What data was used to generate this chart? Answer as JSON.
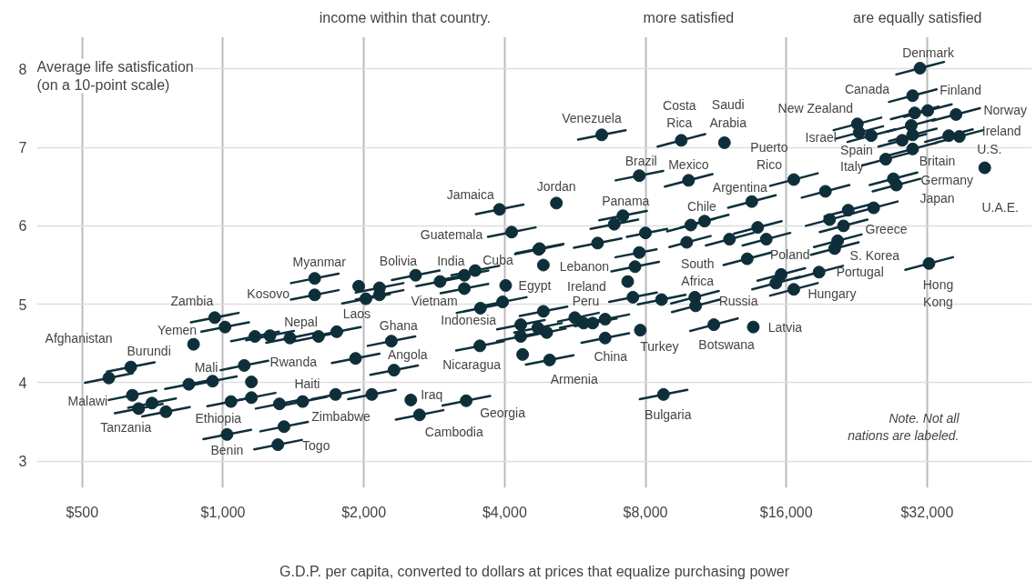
{
  "chart_data": {
    "type": "scatter",
    "xlabel": "G.D.P. per capita, converted to dollars at prices that equalize purchasing power",
    "ylabel": "Average life satisfication\n(on a 10-point scale)",
    "log": "x",
    "grid": true,
    "xlim": [
      400,
      53600
    ],
    "ylim": [
      2.66,
      8.41
    ],
    "xticks": [
      {
        "value": 500,
        "label": "$500"
      },
      {
        "value": 1000,
        "label": "$1,000"
      },
      {
        "value": 2000,
        "label": "$2,000"
      },
      {
        "value": 4000,
        "label": "$4,000"
      },
      {
        "value": 8000,
        "label": "$8,000"
      },
      {
        "value": 16000,
        "label": "$16,000"
      },
      {
        "value": 32000,
        "label": "$32,000"
      }
    ],
    "yticks": [
      3,
      4,
      5,
      6,
      7,
      8
    ],
    "series": [
      {
        "color": "#0e2f3a",
        "marker": "circle",
        "x": [
          570,
          635,
          640,
          705,
          660,
          755,
          865,
          960,
          1010,
          845,
          950,
          1150,
          1110,
          1040,
          1150,
          1020,
          1320,
          1480,
          1740,
          1350,
          1310,
          1570,
          1570,
          1170,
          1260,
          1390,
          1600,
          1750,
          1920,
          1950,
          2020,
          2160,
          2160,
          2580,
          2910,
          3280,
          3460,
          3280,
          4020,
          3960,
          3550,
          2290,
          2320,
          3540,
          2520,
          2630,
          3310,
          2080,
          4330,
          4330,
          4370,
          4710,
          4920,
          4840,
          4990,
          4840,
          4730,
          5650,
          5900,
          6170,
          6560,
          6560,
          7330,
          7600,
          7760,
          7520,
          7800,
          8660,
          10200,
          10240,
          8740,
          6450,
          9540,
          7760,
          9890,
          3900,
          5160,
          4140,
          4750,
          7160,
          6860,
          6320,
          8000,
          10000,
          10700,
          9800,
          30900,
          29800,
          30100,
          32100,
          29600,
          29800,
          36900,
          35600,
          37500,
          22700,
          22900,
          24300,
          29800,
          28300,
          26100,
          11800,
          16600,
          19400,
          27100,
          27500,
          42500,
          13500,
          12100,
          13900,
          14500,
          19800,
          21700,
          24600,
          21200,
          20600,
          20300,
          13200,
          32300,
          15600,
          15200,
          18800,
          16600,
          11200,
          13600
        ],
        "values": [
          4.06,
          4.2,
          3.84,
          3.74,
          3.67,
          3.63,
          4.49,
          4.83,
          4.71,
          3.98,
          4.02,
          4.01,
          4.22,
          3.76,
          3.81,
          3.34,
          3.73,
          3.76,
          3.85,
          3.44,
          3.21,
          5.33,
          5.12,
          4.59,
          4.6,
          4.57,
          4.59,
          4.65,
          4.31,
          5.23,
          5.07,
          5.21,
          5.12,
          5.37,
          5.29,
          5.37,
          5.43,
          5.2,
          5.24,
          5.03,
          4.95,
          4.53,
          4.16,
          4.47,
          3.78,
          3.59,
          3.77,
          3.85,
          4.74,
          4.59,
          4.36,
          4.7,
          4.64,
          4.91,
          4.29,
          5.5,
          5.7,
          4.83,
          4.76,
          4.76,
          4.81,
          4.57,
          5.29,
          5.48,
          5.66,
          5.09,
          4.67,
          5.06,
          5.09,
          4.98,
          3.85,
          7.16,
          7.09,
          6.64,
          6.58,
          6.21,
          6.29,
          5.92,
          5.71,
          6.13,
          6.02,
          5.78,
          5.91,
          6.01,
          6.06,
          5.79,
          8.01,
          7.66,
          7.44,
          7.47,
          7.28,
          7.16,
          7.42,
          7.15,
          7.14,
          7.3,
          7.19,
          7.15,
          6.98,
          7.09,
          6.85,
          7.06,
          6.59,
          6.44,
          6.6,
          6.52,
          6.74,
          6.31,
          5.83,
          5.98,
          5.83,
          6.08,
          6.2,
          6.23,
          6.0,
          5.81,
          5.71,
          5.58,
          5.52,
          5.38,
          5.27,
          5.41,
          5.19,
          4.74,
          4.71
        ]
      },
      {
        "type": "line",
        "color": "#0e2f3a",
        "x": [
          507,
          641
        ],
        "values": [
          4.0,
          4.12
        ]
      },
      {
        "type": "line",
        "color": "#0e2f3a",
        "x": [
          565,
          714
        ],
        "values": [
          4.14,
          4.26
        ]
      },
      {
        "type": "line",
        "color": "#0e2f3a",
        "x": [
          570,
          720
        ],
        "values": [
          3.78,
          3.9
        ]
      },
      {
        "type": "line",
        "color": "#0e2f3a",
        "x": [
          627,
          793
        ],
        "values": [
          3.68,
          3.8
        ]
      },
      {
        "type": "line",
        "color": "#0e2f3a",
        "x": [
          587,
          743
        ],
        "values": [
          3.61,
          3.73
        ]
      },
      {
        "type": "line",
        "color": "#0e2f3a",
        "x": [
          672,
          849
        ],
        "values": [
          3.57,
          3.69
        ]
      },
      {
        "type": "line",
        "color": "#0e2f3a",
        "x": [
          854,
          1080
        ],
        "values": [
          4.77,
          4.89
        ]
      },
      {
        "type": "line",
        "color": "#0e2f3a",
        "x": [
          899,
          1136
        ],
        "values": [
          4.65,
          4.77
        ]
      },
      {
        "type": "line",
        "color": "#0e2f3a",
        "x": [
          752,
          951
        ],
        "values": [
          3.92,
          4.04
        ]
      },
      {
        "type": "line",
        "color": "#0e2f3a",
        "x": [
          846,
          1069
        ],
        "values": [
          3.96,
          4.08
        ]
      },
      {
        "type": "line",
        "color": "#0e2f3a",
        "x": [
          988,
          1249
        ],
        "values": [
          4.16,
          4.28
        ]
      },
      {
        "type": "line",
        "color": "#0e2f3a",
        "x": [
          926,
          1170
        ],
        "values": [
          3.7,
          3.82
        ]
      },
      {
        "type": "line",
        "color": "#0e2f3a",
        "x": [
          1024,
          1294
        ],
        "values": [
          3.75,
          3.87
        ]
      },
      {
        "type": "line",
        "color": "#0e2f3a",
        "x": [
          908,
          1148
        ],
        "values": [
          3.28,
          3.4
        ]
      },
      {
        "type": "line",
        "color": "#0e2f3a",
        "x": [
          1175,
          1485
        ],
        "values": [
          3.67,
          3.79
        ]
      },
      {
        "type": "line",
        "color": "#0e2f3a",
        "x": [
          1317,
          1665
        ],
        "values": [
          3.7,
          3.82
        ]
      },
      {
        "type": "line",
        "color": "#0e2f3a",
        "x": [
          1549,
          1958
        ],
        "values": [
          3.79,
          3.91
        ]
      },
      {
        "type": "line",
        "color": "#0e2f3a",
        "x": [
          1202,
          1519
        ],
        "values": [
          3.38,
          3.5
        ]
      },
      {
        "type": "line",
        "color": "#0e2f3a",
        "x": [
          1166,
          1474
        ],
        "values": [
          3.15,
          3.27
        ]
      },
      {
        "type": "line",
        "color": "#0e2f3a",
        "x": [
          1397,
          1766
        ],
        "values": [
          5.27,
          5.39
        ]
      },
      {
        "type": "line",
        "color": "#0e2f3a",
        "x": [
          1397,
          1766
        ],
        "values": [
          5.06,
          5.18
        ]
      },
      {
        "type": "line",
        "color": "#0e2f3a",
        "x": [
          1041,
          1316
        ],
        "values": [
          4.53,
          4.65
        ]
      },
      {
        "type": "line",
        "color": "#0e2f3a",
        "x": [
          1121,
          1418
        ],
        "values": [
          4.54,
          4.66
        ]
      },
      {
        "type": "line",
        "color": "#0e2f3a",
        "x": [
          1237,
          1564
        ],
        "values": [
          4.51,
          4.63
        ]
      },
      {
        "type": "line",
        "color": "#0e2f3a",
        "x": [
          1424,
          1800
        ],
        "values": [
          4.53,
          4.65
        ]
      },
      {
        "type": "line",
        "color": "#0e2f3a",
        "x": [
          1558,
          1969
        ],
        "values": [
          4.59,
          4.71
        ]
      },
      {
        "type": "line",
        "color": "#0e2f3a",
        "x": [
          1709,
          2160
        ],
        "values": [
          4.25,
          4.37
        ]
      },
      {
        "type": "line",
        "color": "#0e2f3a",
        "x": [
          1798,
          2273
        ],
        "values": [
          5.01,
          5.13
        ]
      },
      {
        "type": "line",
        "color": "#0e2f3a",
        "x": [
          1922,
          2430
        ],
        "values": [
          5.15,
          5.27
        ]
      },
      {
        "type": "line",
        "color": "#0e2f3a",
        "x": [
          1922,
          2430
        ],
        "values": [
          5.06,
          5.18
        ]
      },
      {
        "type": "line",
        "color": "#0e2f3a",
        "x": [
          2296,
          2903
        ],
        "values": [
          5.31,
          5.43
        ]
      },
      {
        "type": "line",
        "color": "#0e2f3a",
        "x": [
          2590,
          3274
        ],
        "values": [
          5.23,
          5.35
        ]
      },
      {
        "type": "line",
        "color": "#0e2f3a",
        "x": [
          2919,
          3690
        ],
        "values": [
          5.31,
          5.43
        ]
      },
      {
        "type": "line",
        "color": "#0e2f3a",
        "x": [
          3079,
          3893
        ],
        "values": [
          5.37,
          5.49
        ]
      },
      {
        "type": "line",
        "color": "#0e2f3a",
        "x": [
          2919,
          3690
        ],
        "values": [
          5.14,
          5.26
        ]
      },
      {
        "type": "line",
        "color": "#0e2f3a",
        "x": [
          3524,
          4455
        ],
        "values": [
          4.97,
          5.09
        ]
      },
      {
        "type": "line",
        "color": "#0e2f3a",
        "x": [
          3160,
          3994
        ],
        "values": [
          4.89,
          5.01
        ]
      },
      {
        "type": "line",
        "color": "#0e2f3a",
        "x": [
          2038,
          2576
        ],
        "values": [
          4.47,
          4.59
        ]
      },
      {
        "type": "line",
        "color": "#0e2f3a",
        "x": [
          2065,
          2610
        ],
        "values": [
          4.1,
          4.22
        ]
      },
      {
        "type": "line",
        "color": "#0e2f3a",
        "x": [
          3151,
          3983
        ],
        "values": [
          4.41,
          4.53
        ]
      },
      {
        "type": "line",
        "color": "#0e2f3a",
        "x": [
          2341,
          2959
        ],
        "values": [
          3.53,
          3.65
        ]
      },
      {
        "type": "line",
        "color": "#0e2f3a",
        "x": [
          2946,
          3724
        ],
        "values": [
          3.71,
          3.83
        ]
      },
      {
        "type": "line",
        "color": "#0e2f3a",
        "x": [
          1851,
          2340
        ],
        "values": [
          3.79,
          3.91
        ]
      },
      {
        "type": "line",
        "color": "#0e2f3a",
        "x": [
          3854,
          4871
        ],
        "values": [
          4.68,
          4.8
        ]
      },
      {
        "type": "line",
        "color": "#0e2f3a",
        "x": [
          3854,
          4871
        ],
        "values": [
          4.53,
          4.65
        ]
      },
      {
        "type": "line",
        "color": "#0e2f3a",
        "x": [
          4192,
          5299
        ],
        "values": [
          4.64,
          4.76
        ]
      },
      {
        "type": "line",
        "color": "#0e2f3a",
        "x": [
          4450,
          5400
        ],
        "values": [
          4.59,
          4.69
        ]
      },
      {
        "type": "line",
        "color": "#0e2f3a",
        "x": [
          4308,
          5445
        ],
        "values": [
          4.85,
          4.97
        ]
      },
      {
        "type": "line",
        "color": "#0e2f3a",
        "x": [
          4441,
          5614
        ],
        "values": [
          4.23,
          4.35
        ]
      },
      {
        "type": "line",
        "color": "#0e2f3a",
        "x": [
          4210,
          5321
        ],
        "values": [
          5.64,
          5.76
        ]
      },
      {
        "type": "line",
        "color": "#0e2f3a",
        "x": [
          5200,
          6356
        ],
        "values": [
          4.78,
          4.89
        ]
      },
      {
        "type": "line",
        "color": "#0e2f3a",
        "x": [
          5251,
          6638
        ],
        "values": [
          4.7,
          4.82
        ]
      },
      {
        "type": "line",
        "color": "#0e2f3a",
        "x": [
          5650,
          6941
        ],
        "values": [
          4.72,
          4.82
        ]
      },
      {
        "type": "line",
        "color": "#0e2f3a",
        "x": [
          5838,
          7380
        ],
        "values": [
          4.75,
          4.87
        ]
      },
      {
        "type": "line",
        "color": "#0e2f3a",
        "x": [
          5838,
          7380
        ],
        "values": [
          4.51,
          4.63
        ]
      },
      {
        "type": "line",
        "color": "#0e2f3a",
        "x": [
          6764,
          8550
        ],
        "values": [
          5.42,
          5.54
        ]
      },
      {
        "type": "line",
        "color": "#0e2f3a",
        "x": [
          6906,
          8450
        ],
        "values": [
          5.6,
          5.7
        ]
      },
      {
        "type": "line",
        "color": "#0e2f3a",
        "x": [
          6693,
          8460
        ],
        "values": [
          5.03,
          5.15
        ]
      },
      {
        "type": "line",
        "color": "#0e2f3a",
        "x": [
          7707,
          9743
        ],
        "values": [
          5.0,
          5.12
        ]
      },
      {
        "type": "line",
        "color": "#0e2f3a",
        "x": [
          9078,
          11475
        ],
        "values": [
          5.01,
          5.17
        ]
      },
      {
        "type": "line",
        "color": "#0e2f3a",
        "x": [
          9114,
          11520
        ],
        "values": [
          4.9,
          5.06
        ]
      },
      {
        "type": "line",
        "color": "#0e2f3a",
        "x": [
          7779,
          9833
        ],
        "values": [
          3.79,
          3.91
        ]
      },
      {
        "type": "line",
        "color": "#0e2f3a",
        "x": [
          5741,
          7256
        ],
        "values": [
          7.1,
          7.22
        ]
      },
      {
        "type": "line",
        "color": "#0e2f3a",
        "x": [
          8491,
          10733
        ],
        "values": [
          7.01,
          7.17
        ]
      },
      {
        "type": "line",
        "color": "#0e2f3a",
        "x": [
          6906,
          8730
        ],
        "values": [
          6.58,
          6.7
        ]
      },
      {
        "type": "line",
        "color": "#0e2f3a",
        "x": [
          8802,
          11126
        ],
        "values": [
          6.5,
          6.66
        ]
      },
      {
        "type": "line",
        "color": "#0e2f3a",
        "x": [
          3471,
          4388
        ],
        "values": [
          6.15,
          6.27
        ]
      },
      {
        "type": "line",
        "color": "#0e2f3a",
        "x": [
          3685,
          4658
        ],
        "values": [
          5.86,
          5.98
        ]
      },
      {
        "type": "line",
        "color": "#0e2f3a",
        "x": [
          4228,
          5344
        ],
        "values": [
          5.65,
          5.77
        ]
      },
      {
        "type": "line",
        "color": "#0e2f3a",
        "x": [
          6372,
          8055
        ],
        "values": [
          6.07,
          6.19
        ]
      },
      {
        "type": "line",
        "color": "#0e2f3a",
        "x": [
          6105,
          7718
        ],
        "values": [
          5.96,
          6.08
        ]
      },
      {
        "type": "line",
        "color": "#0e2f3a",
        "x": [
          5625,
          7110
        ],
        "values": [
          5.72,
          5.84
        ]
      },
      {
        "type": "line",
        "color": "#0e2f3a",
        "x": [
          7300,
          8900
        ],
        "values": [
          5.86,
          5.96
        ]
      },
      {
        "type": "line",
        "color": "#0e2f3a",
        "x": [
          8900,
          11250
        ],
        "values": [
          5.93,
          6.09
        ]
      },
      {
        "type": "line",
        "color": "#0e2f3a",
        "x": [
          9523,
          12038
        ],
        "values": [
          5.98,
          6.14
        ]
      },
      {
        "type": "line",
        "color": "#0e2f3a",
        "x": [
          9000,
          11025
        ],
        "values": [
          5.73,
          5.87
        ]
      },
      {
        "type": "line",
        "color": "#0e2f3a",
        "x": [
          27501,
          34763
        ],
        "values": [
          7.93,
          8.09
        ]
      },
      {
        "type": "line",
        "color": "#0e2f3a",
        "x": [
          26522,
          33525
        ],
        "values": [
          7.58,
          7.74
        ]
      },
      {
        "type": "line",
        "color": "#0e2f3a",
        "x": [
          26789,
          33863
        ],
        "values": [
          7.36,
          7.52
        ]
      },
      {
        "type": "line",
        "color": "#0e2f3a",
        "x": [
          28569,
          36113
        ],
        "values": [
          7.39,
          7.55
        ]
      },
      {
        "type": "line",
        "color": "#0e2f3a",
        "x": [
          26344,
          33300
        ],
        "values": [
          7.2,
          7.36
        ]
      },
      {
        "type": "line",
        "color": "#0e2f3a",
        "x": [
          26522,
          33525
        ],
        "values": [
          7.08,
          7.24
        ]
      },
      {
        "type": "line",
        "color": "#0e2f3a",
        "x": [
          32841,
          41513
        ],
        "values": [
          7.34,
          7.5
        ]
      },
      {
        "type": "line",
        "color": "#0e2f3a",
        "x": [
          31684,
          40050
        ],
        "values": [
          7.07,
          7.23
        ]
      },
      {
        "type": "line",
        "color": "#0e2f3a",
        "x": [
          33375,
          42188
        ],
        "values": [
          7.06,
          7.22
        ]
      },
      {
        "type": "line",
        "color": "#0e2f3a",
        "x": [
          20203,
          25538
        ],
        "values": [
          7.22,
          7.38
        ]
      },
      {
        "type": "line",
        "color": "#0e2f3a",
        "x": [
          20381,
          25763
        ],
        "values": [
          7.11,
          7.27
        ]
      },
      {
        "type": "line",
        "color": "#0e2f3a",
        "x": [
          21627,
          27338
        ],
        "values": [
          7.07,
          7.23
        ]
      },
      {
        "type": "line",
        "color": "#0e2f3a",
        "x": [
          26522,
          33525
        ],
        "values": [
          6.9,
          7.06
        ]
      },
      {
        "type": "line",
        "color": "#0e2f3a",
        "x": [
          25187,
          31838
        ],
        "values": [
          7.01,
          7.17
        ]
      },
      {
        "type": "line",
        "color": "#0e2f3a",
        "x": [
          23229,
          29363
        ],
        "values": [
          6.77,
          6.93
        ]
      },
      {
        "type": "line",
        "color": "#0e2f3a",
        "x": [
          14774,
          18675
        ],
        "values": [
          6.51,
          6.67
        ]
      },
      {
        "type": "line",
        "color": "#0e2f3a",
        "x": [
          17266,
          21825
        ],
        "values": [
          6.36,
          6.52
        ]
      },
      {
        "type": "line",
        "color": "#0e2f3a",
        "x": [
          24119,
          30488
        ],
        "values": [
          6.52,
          6.68
        ]
      },
      {
        "type": "line",
        "color": "#0e2f3a",
        "x": [
          24475,
          30938
        ],
        "values": [
          6.44,
          6.6
        ]
      },
      {
        "type": "line",
        "color": "#0e2f3a",
        "x": [
          12015,
          15188
        ],
        "values": [
          6.23,
          6.39
        ]
      },
      {
        "type": "line",
        "color": "#0e2f3a",
        "x": [
          10769,
          13613
        ],
        "values": [
          5.75,
          5.91
        ]
      },
      {
        "type": "line",
        "color": "#0e2f3a",
        "x": [
          12371,
          15638
        ],
        "values": [
          5.9,
          6.06
        ]
      },
      {
        "type": "line",
        "color": "#0e2f3a",
        "x": [
          12905,
          16313
        ],
        "values": [
          5.75,
          5.91
        ]
      },
      {
        "type": "line",
        "color": "#0e2f3a",
        "x": [
          17622,
          22275
        ],
        "values": [
          6.0,
          6.16
        ]
      },
      {
        "type": "line",
        "color": "#0e2f3a",
        "x": [
          19313,
          24413
        ],
        "values": [
          6.12,
          6.28
        ]
      },
      {
        "type": "line",
        "color": "#0e2f3a",
        "x": [
          21894,
          27675
        ],
        "values": [
          6.15,
          6.31
        ]
      },
      {
        "type": "line",
        "color": "#0e2f3a",
        "x": [
          18868,
          23850
        ],
        "values": [
          5.92,
          6.08
        ]
      },
      {
        "type": "line",
        "color": "#0e2f3a",
        "x": [
          18334,
          23175
        ],
        "values": [
          5.73,
          5.89
        ]
      },
      {
        "type": "line",
        "color": "#0e2f3a",
        "x": [
          18067,
          22838
        ],
        "values": [
          5.63,
          5.79
        ]
      },
      {
        "type": "line",
        "color": "#0e2f3a",
        "x": [
          11748,
          14850
        ],
        "values": [
          5.5,
          5.66
        ]
      },
      {
        "type": "line",
        "color": "#0e2f3a",
        "x": [
          28747,
          36338
        ],
        "values": [
          5.44,
          5.6
        ]
      },
      {
        "type": "line",
        "color": "#0e2f3a",
        "x": [
          13884,
          17550
        ],
        "values": [
          5.3,
          5.46
        ]
      },
      {
        "type": "line",
        "color": "#0e2f3a",
        "x": [
          13528,
          17100
        ],
        "values": [
          5.19,
          5.35
        ]
      },
      {
        "type": "line",
        "color": "#0e2f3a",
        "x": [
          16732,
          21150
        ],
        "values": [
          5.33,
          5.49
        ]
      },
      {
        "type": "line",
        "color": "#0e2f3a",
        "x": [
          14774,
          18675
        ],
        "values": [
          5.11,
          5.27
        ]
      },
      {
        "type": "line",
        "color": "#0e2f3a",
        "x": [
          9968,
          12600
        ],
        "values": [
          4.66,
          4.82
        ]
      }
    ],
    "annotations": [
      "income within that country.",
      "more satisfied",
      "are equally satisfied",
      {
        "text": "Denmark",
        "x": 30900,
        "y": 8.01
      },
      {
        "text": "Canada",
        "x": 29800,
        "y": 7.66
      },
      {
        "text": "Finland",
        "x": 32100,
        "y": 7.47
      },
      {
        "text": "New Zealand",
        "x": 22700,
        "y": 7.3
      },
      {
        "text": "Norway",
        "x": 36900,
        "y": 7.42
      },
      {
        "text": "Ireland",
        "x": 35600,
        "y": 7.15
      },
      {
        "text": "Israel",
        "x": 22900,
        "y": 7.19
      },
      {
        "text": "U.S.",
        "x": 37500,
        "y": 7.14
      },
      {
        "text": "Spain",
        "x": 28300,
        "y": 7.09
      },
      {
        "text": "Puerto\nRico",
        "x": 16600,
        "y": 6.59
      },
      {
        "text": "Costa\nRica",
        "x": 9540,
        "y": 7.09
      },
      {
        "text": "Saudi\nArabia",
        "x": 11800,
        "y": 7.06
      },
      {
        "text": "Venezuela",
        "x": 6450,
        "y": 7.16
      },
      {
        "text": "Brazil",
        "x": 7760,
        "y": 6.64
      },
      {
        "text": "Mexico",
        "x": 9890,
        "y": 6.58
      },
      {
        "text": "Britain",
        "x": 29800,
        "y": 6.98
      },
      {
        "text": "Italy",
        "x": 26100,
        "y": 6.85
      },
      {
        "text": "Germany",
        "x": 27100,
        "y": 6.6
      },
      {
        "text": "Japan",
        "x": 27500,
        "y": 6.52
      },
      {
        "text": "U.A.E.",
        "x": 42500,
        "y": 6.74
      },
      {
        "text": "Argentina",
        "x": 13500,
        "y": 6.31
      },
      {
        "text": "Chile",
        "x": 10700,
        "y": 6.06
      },
      {
        "text": "Jamaica",
        "x": 3900,
        "y": 6.21
      },
      {
        "text": "Jordan",
        "x": 5160,
        "y": 6.29
      },
      {
        "text": "Panama",
        "x": 7160,
        "y": 6.13
      },
      {
        "text": "Guatemala",
        "x": 4140,
        "y": 5.92
      },
      {
        "text": "Greece",
        "x": 21200,
        "y": 6.0
      },
      {
        "text": "Lebanon",
        "x": 4840,
        "y": 5.5
      },
      {
        "text": "S. Korea",
        "x": 20300,
        "y": 5.71
      },
      {
        "text": "Myanmar",
        "x": 1570,
        "y": 5.33
      },
      {
        "text": "Bolivia",
        "x": 2580,
        "y": 5.37
      },
      {
        "text": "India",
        "x": 2910,
        "y": 5.29
      },
      {
        "text": "Cuba",
        "x": 3460,
        "y": 5.43
      },
      {
        "text": "Poland",
        "x": 13200,
        "y": 5.58
      },
      {
        "text": "South\nAfrica",
        "x": 10200,
        "y": 5.09
      },
      {
        "text": "Portugal",
        "x": 18800,
        "y": 5.41
      },
      {
        "text": "Kosovo",
        "x": 1570,
        "y": 5.12
      },
      {
        "text": "Egypt",
        "x": 4020,
        "y": 5.24
      },
      {
        "text": "Ireland",
        "x": 7330,
        "y": 5.29
      },
      {
        "text": "Zambia",
        "x": 960,
        "y": 4.83
      },
      {
        "text": "Laos",
        "x": 2020,
        "y": 5.07
      },
      {
        "text": "Vietnam",
        "x": 3280,
        "y": 5.2
      },
      {
        "text": "Peru",
        "x": 5650,
        "y": 4.83
      },
      {
        "text": "Hungary",
        "x": 16600,
        "y": 5.19
      },
      {
        "text": "Russia",
        "x": 10240,
        "y": 4.98
      },
      {
        "text": "Hong\nKong",
        "x": 32300,
        "y": 5.52
      },
      {
        "text": "Nepal",
        "x": 1390,
        "y": 4.57
      },
      {
        "text": "Indonesia",
        "x": 3550,
        "y": 4.95
      },
      {
        "text": "Yemen",
        "x": 865,
        "y": 4.49
      },
      {
        "text": "Afghanistan",
        "x": 570,
        "y": 4.06
      },
      {
        "text": "Ghana",
        "x": 2290,
        "y": 4.53
      },
      {
        "text": "Latvia",
        "x": 13600,
        "y": 4.71
      },
      {
        "text": "Botswana",
        "x": 11200,
        "y": 4.74
      },
      {
        "text": "Turkey",
        "x": 7800,
        "y": 4.67
      },
      {
        "text": "China",
        "x": 6560,
        "y": 4.57
      },
      {
        "text": "Burundi",
        "x": 635,
        "y": 4.2
      },
      {
        "text": "Rwanda",
        "x": 1110,
        "y": 4.22
      },
      {
        "text": "Angola",
        "x": 2320,
        "y": 4.16
      },
      {
        "text": "Mali",
        "x": 950,
        "y": 4.02
      },
      {
        "text": "Nicaragua",
        "x": 3540,
        "y": 4.47
      },
      {
        "text": "Armenia",
        "x": 4990,
        "y": 4.29
      },
      {
        "text": "Haiti",
        "x": 1480,
        "y": 3.76
      },
      {
        "text": "Malawi",
        "x": 640,
        "y": 3.84
      },
      {
        "text": "Iraq",
        "x": 2520,
        "y": 3.78
      },
      {
        "text": "Georgia",
        "x": 3310,
        "y": 3.77
      },
      {
        "text": "Ethiopia",
        "x": 1040,
        "y": 3.76
      },
      {
        "text": "Tanzania",
        "x": 660,
        "y": 3.67
      },
      {
        "text": "Zimbabwe",
        "x": 1740,
        "y": 3.85
      },
      {
        "text": "Cambodia",
        "x": 2630,
        "y": 3.59
      },
      {
        "text": "Bulgaria",
        "x": 8740,
        "y": 3.85
      },
      {
        "text": "Togo",
        "x": 1310,
        "y": 3.21
      },
      {
        "text": "Benin",
        "x": 1020,
        "y": 3.34
      },
      "Note. Not all\nnations are labeled."
    ]
  }
}
